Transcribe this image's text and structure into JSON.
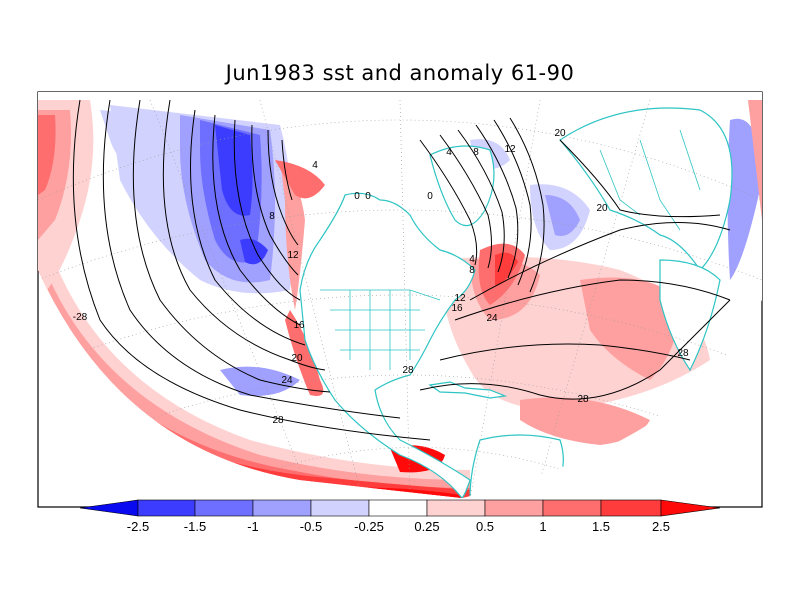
{
  "title": "Jun1983 sst and anomaly 61-90",
  "colors": {
    "coast": "#2ec4c4",
    "contour": "#000000",
    "grid": "#9a9a9a",
    "frame": "#000000"
  },
  "colorbar": {
    "levels": [
      "-2.5",
      "-1.5",
      "-1",
      "-0.5",
      "-0.25",
      "0.25",
      "0.5",
      "1",
      "1.5",
      "2.5"
    ],
    "colors": [
      "#0a0af0",
      "#3c3cff",
      "#6e6eff",
      "#a0a0ff",
      "#d2d2ff",
      "#ffffff",
      "#ffd2d2",
      "#ffa0a0",
      "#ff6e6e",
      "#ff3c3c",
      "#ff0a0a"
    ]
  },
  "contour_labels": [
    {
      "name": "contour-label-28-west",
      "text": "-28"
    },
    {
      "name": "contour-label-4-alaska",
      "text": "4"
    },
    {
      "name": "contour-label-0-hudson-a",
      "text": "0"
    },
    {
      "name": "contour-label-0-hudson-b",
      "text": "0"
    },
    {
      "name": "contour-label-8-pacific",
      "text": "8"
    },
    {
      "name": "contour-label-12-pacific",
      "text": "12"
    },
    {
      "name": "contour-label-16-pacific",
      "text": "16"
    },
    {
      "name": "contour-label-20-pacific",
      "text": "20"
    },
    {
      "name": "contour-label-24-pacific",
      "text": "24"
    },
    {
      "name": "contour-label-28-pacific",
      "text": "28"
    },
    {
      "name": "contour-label-0-greenland-a",
      "text": "0"
    },
    {
      "name": "contour-label-4-greenland",
      "text": "4"
    },
    {
      "name": "contour-label-8-greenland",
      "text": "8"
    },
    {
      "name": "contour-label-12-iceland",
      "text": "12"
    },
    {
      "name": "contour-label-20-norway",
      "text": "20"
    },
    {
      "name": "contour-label-20-europe",
      "text": "20"
    },
    {
      "name": "contour-label-4-newfoundland",
      "text": "4"
    },
    {
      "name": "contour-label-8-newfoundland",
      "text": "8"
    },
    {
      "name": "contour-label-12-gulfstream",
      "text": "12"
    },
    {
      "name": "contour-label-16-gulfstream",
      "text": "16"
    },
    {
      "name": "contour-label-24-atlantic",
      "text": "24"
    },
    {
      "name": "contour-label-28-caribbean",
      "text": "28"
    },
    {
      "name": "contour-label-28-atlantic",
      "text": "28"
    },
    {
      "name": "contour-label-28-east",
      "text": "28"
    }
  ]
}
